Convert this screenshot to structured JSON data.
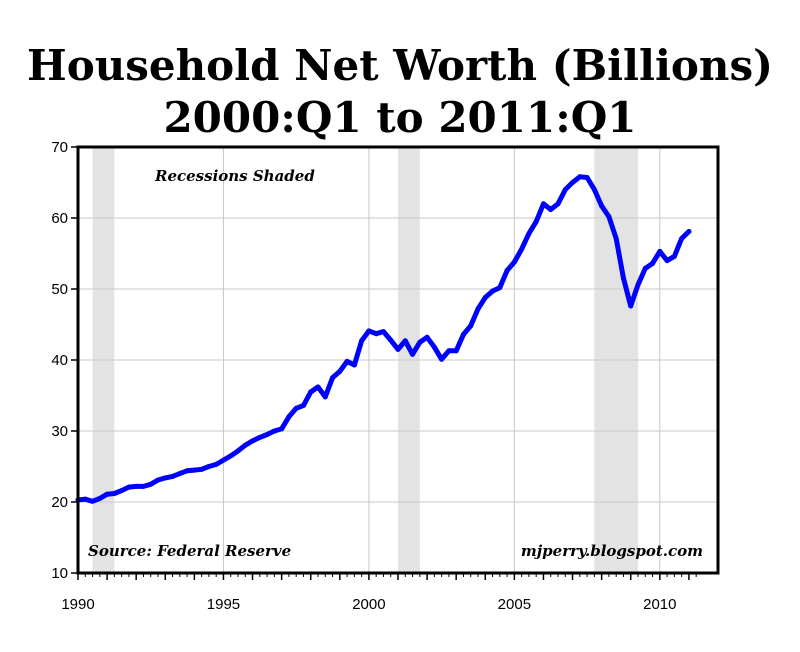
{
  "title_line1": "Household Net Worth (Billions)",
  "title_line2": "2000:Q1 to 2011:Q1",
  "chart_data": {
    "type": "line",
    "title": "Household Net Worth (Billions) 2000:Q1 to 2011:Q1",
    "xlim": [
      1990,
      2012
    ],
    "ylim": [
      10,
      70
    ],
    "x_ticks": [
      1990,
      1995,
      2000,
      2005,
      2010
    ],
    "y_ticks": [
      10,
      20,
      30,
      40,
      50,
      60,
      70
    ],
    "grid": true,
    "line_color": "#0000ff",
    "recession_color": "#e3e3e3",
    "recessions": [
      [
        1990.5,
        1991.25
      ],
      [
        2001.0,
        2001.75
      ],
      [
        2007.75,
        2009.25
      ]
    ],
    "annotations": {
      "recessions": "Recessions Shaded",
      "source": "Source: Federal Reserve",
      "credit": "mjperry.blogspot.com"
    },
    "series": [
      {
        "x": [
          1990.0,
          1990.25,
          1990.5,
          1990.75,
          1991.0,
          1991.25,
          1991.5,
          1991.75,
          1992.0,
          1992.25,
          1992.5,
          1992.75,
          1993.0,
          1993.25,
          1993.5,
          1993.75,
          1994.0,
          1994.25,
          1994.5,
          1994.75,
          1995.0,
          1995.25,
          1995.5,
          1995.75,
          1996.0,
          1996.25,
          1996.5,
          1996.75,
          1997.0,
          1997.25,
          1997.5,
          1997.75,
          1998.0,
          1998.25,
          1998.5,
          1998.75,
          1999.0,
          1999.25,
          1999.5,
          1999.75,
          2000.0,
          2000.25,
          2000.5,
          2000.75,
          2001.0,
          2001.25,
          2001.5,
          2001.75,
          2002.0,
          2002.25,
          2002.5,
          2002.75,
          2003.0,
          2003.25,
          2003.5,
          2003.75,
          2004.0,
          2004.25,
          2004.5,
          2004.75,
          2005.0,
          2005.25,
          2005.5,
          2005.75,
          2006.0,
          2006.25,
          2006.5,
          2006.75,
          2007.0,
          2007.25,
          2007.5,
          2007.75,
          2008.0,
          2008.25,
          2008.5,
          2008.75,
          2009.0,
          2009.25,
          2009.5,
          2009.75,
          2010.0,
          2010.25,
          2010.5,
          2010.75,
          2011.0
        ],
        "values": [
          20.3,
          20.4,
          20.1,
          20.5,
          21.1,
          21.2,
          21.6,
          22.1,
          22.2,
          22.2,
          22.5,
          23.1,
          23.4,
          23.6,
          24.0,
          24.4,
          24.5,
          24.6,
          25.0,
          25.3,
          25.9,
          26.5,
          27.2,
          28.0,
          28.6,
          29.1,
          29.5,
          30.0,
          30.3,
          32.0,
          33.2,
          33.6,
          35.5,
          36.2,
          34.8,
          37.5,
          38.4,
          39.8,
          39.3,
          42.7,
          44.1,
          43.7,
          44.0,
          42.8,
          41.5,
          42.7,
          40.8,
          42.5,
          43.2,
          41.8,
          40.1,
          41.3,
          41.3,
          43.6,
          44.8,
          47.2,
          48.8,
          49.7,
          50.2,
          52.6,
          53.8,
          55.6,
          57.8,
          59.5,
          62.0,
          61.2,
          62.0,
          64.0,
          65.0,
          65.8,
          65.7,
          64.0,
          61.7,
          60.2,
          57.1,
          51.5,
          47.6,
          50.6,
          52.9,
          53.6,
          55.3,
          54.0,
          54.6,
          57.1,
          58.1
        ]
      }
    ]
  }
}
